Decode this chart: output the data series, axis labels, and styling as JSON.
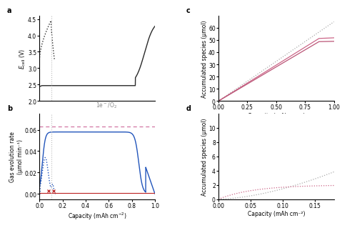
{
  "panel_a": {
    "vline_x": 0.105,
    "ylim": [
      2.0,
      4.6
    ],
    "ylabel": "$E_\\mathrm{cell}$ (V)",
    "yticks": [
      2.0,
      2.5,
      3.0,
      3.5,
      4.0,
      4.5
    ]
  },
  "panel_b": {
    "o2_ref_line": 0.063,
    "vline_x": 0.105,
    "ylim": [
      -0.005,
      0.075
    ],
    "ylabel": "Gas evolution rate\n(μmol min⁻¹)",
    "yticks": [
      0.0,
      0.02,
      0.04,
      0.06
    ],
    "ref_label": "1e⁻/O₂"
  },
  "panel_c": {
    "xlim": [
      0.0,
      1.0
    ],
    "ylim": [
      0,
      70
    ],
    "xlabel": "Capacity (mAh cm⁻²)",
    "ylabel": "Accumulated species (μmol)",
    "yticks": [
      0,
      10,
      20,
      30,
      40,
      50,
      60
    ],
    "xticks": [
      0.0,
      0.25,
      0.5,
      0.75,
      1.0
    ]
  },
  "panel_d": {
    "xlim": [
      0.0,
      0.18
    ],
    "ylim": [
      0,
      12
    ],
    "xlabel": "Capacity (mAh cm⁻²)",
    "ylabel": "Accumulated species (μmol)",
    "yticks": [
      0,
      2,
      4,
      6,
      8,
      10
    ],
    "xticks": [
      0.0,
      0.05,
      0.1,
      0.15
    ]
  },
  "colors": {
    "black": "#2a2a2a",
    "blue": "#2255bb",
    "red": "#bb2222",
    "pink_dashed": "#cc6699",
    "gray_dotted": "#aaaaaa",
    "gray_vline": "#bbbbbb"
  }
}
